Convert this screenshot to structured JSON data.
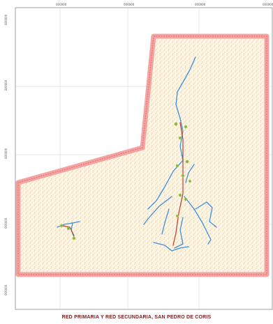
{
  "map": {
    "title": "RED PRIMARIA Y RED SECUNDARIA, SAN PEDRO DE CORIS",
    "top_ticks": [
      "000000",
      "000000",
      "000000",
      "000000"
    ],
    "left_ticks": [
      "000000",
      "000000",
      "000000",
      "000000"
    ],
    "colors": {
      "boundary_outline": "#f08c8c",
      "area_fill": "#fdf6e6",
      "stipple": "#d29a3a",
      "secondary_network": "#3b8fe0",
      "primary_network": "#c0392b",
      "nodes": "#6fbf4a",
      "grid": "#cfcfcf"
    },
    "legend_layers": [
      "boundary",
      "stipple-area",
      "primary-network",
      "secondary-network",
      "nodes"
    ]
  }
}
